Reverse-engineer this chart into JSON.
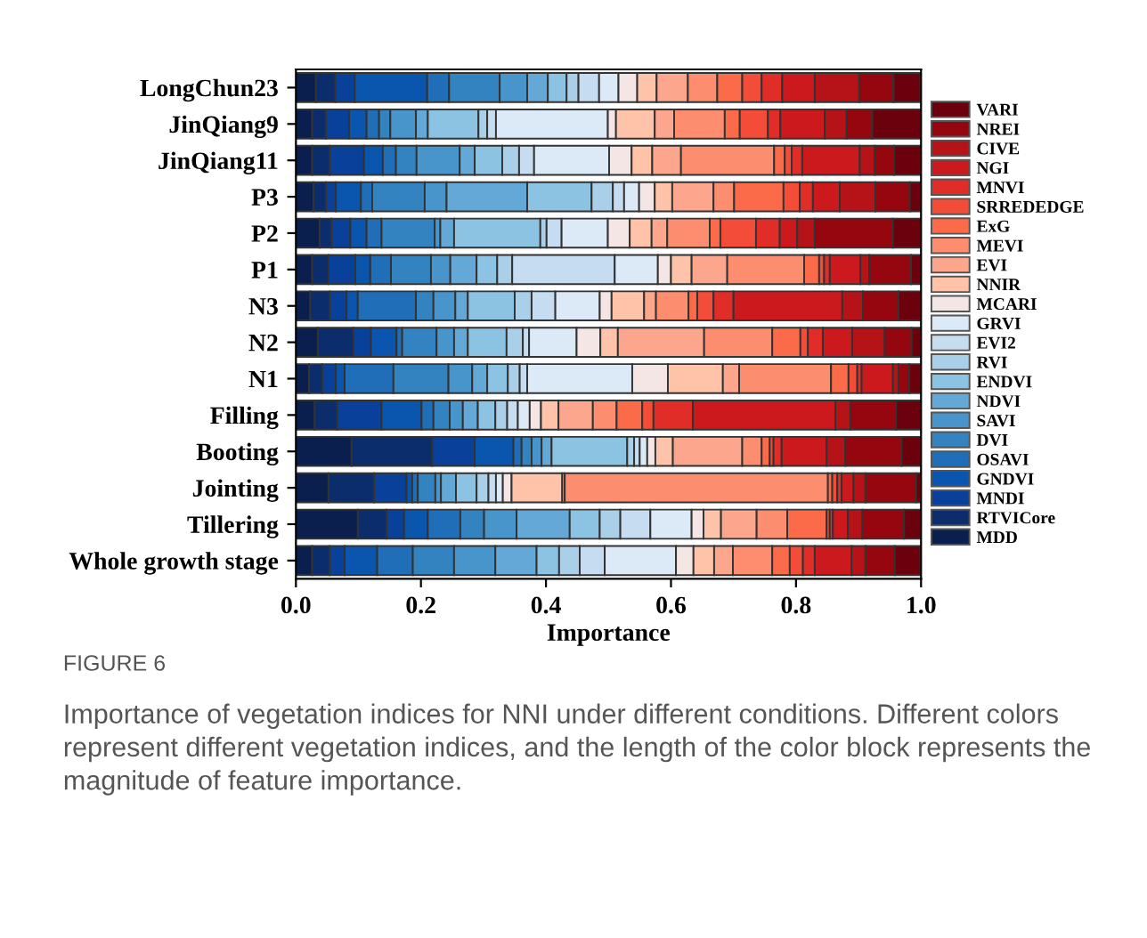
{
  "chart_data": {
    "type": "bar",
    "orientation": "horizontal",
    "stacked": true,
    "xlabel": "Importance",
    "categories": [
      "LongChun23",
      "JinQiang9",
      "JinQiang11",
      "P3",
      "P2",
      "P1",
      "N3",
      "N2",
      "N1",
      "Filling",
      "Booting",
      "Jointing",
      "Tillering",
      "Whole growth stage"
    ],
    "xlim": [
      0,
      1
    ],
    "xticks": [
      {
        "value": 0,
        "label": "0.0"
      },
      {
        "value": 0.2,
        "label": "0.2"
      },
      {
        "value": 0.4,
        "label": "0.4"
      },
      {
        "value": 0.6,
        "label": "0.6"
      },
      {
        "value": 0.8,
        "label": "0.8"
      },
      {
        "value": 1,
        "label": "1.0"
      }
    ],
    "grid": false,
    "legend": "right",
    "series": [
      {
        "name": "MDD",
        "color": "#0a1f4d",
        "values": [
          0.032,
          0.026,
          0.026,
          0.028,
          0.038,
          0.026,
          0.023,
          0.035,
          0.021,
          0.03,
          0.089,
          0.052,
          0.099,
          0.026
        ]
      },
      {
        "name": "RTVICore",
        "color": "#0b2d6b",
        "values": [
          0.031,
          0.022,
          0.028,
          0.02,
          0.019,
          0.026,
          0.031,
          0.057,
          0.021,
          0.036,
          0.129,
          0.073,
          0.046,
          0.028
        ]
      },
      {
        "name": "MNDI",
        "color": "#08409a",
        "values": [
          0.031,
          0.037,
          0.055,
          0.016,
          0.03,
          0.043,
          0.027,
          0.028,
          0.022,
          0.071,
          0.068,
          0.052,
          0.028,
          0.024
        ]
      },
      {
        "name": "GNDVI",
        "color": "#0a56ae",
        "values": [
          0.116,
          0.028,
          0.03,
          0.04,
          0.026,
          0.024,
          0.018,
          0.041,
          0.014,
          0.064,
          0.062,
          0.009,
          0.038,
          0.052
        ]
      },
      {
        "name": "OSAVI",
        "color": "#1f6eb7",
        "values": [
          0.035,
          0.02,
          0.021,
          0.018,
          0.024,
          0.033,
          0.093,
          0.009,
          0.078,
          0.019,
          0.013,
          0.009,
          0.052,
          0.057
        ]
      },
      {
        "name": "DVI",
        "color": "#3383c0",
        "values": [
          0.081,
          0.018,
          0.033,
          0.084,
          0.085,
          0.064,
          0.028,
          0.055,
          0.088,
          0.026,
          0.016,
          0.028,
          0.038,
          0.066
        ]
      },
      {
        "name": "SAVI",
        "color": "#4795ca",
        "values": [
          0.044,
          0.041,
          0.069,
          0.035,
          0.009,
          0.031,
          0.035,
          0.028,
          0.038,
          0.021,
          0.016,
          0.009,
          0.052,
          0.066
        ]
      },
      {
        "name": "NDVI",
        "color": "#63a8d6",
        "values": [
          0.033,
          0.019,
          0.024,
          0.129,
          0.022,
          0.042,
          0.02,
          0.022,
          0.024,
          0.024,
          0.016,
          0.024,
          0.085,
          0.066
        ]
      },
      {
        "name": "ENDVI",
        "color": "#8cc2e2",
        "values": [
          0.03,
          0.081,
          0.044,
          0.103,
          0.138,
          0.033,
          0.075,
          0.062,
          0.033,
          0.028,
          0.121,
          0.033,
          0.048,
          0.036
        ]
      },
      {
        "name": "RVI",
        "color": "#aacfe8",
        "values": [
          0.019,
          0.014,
          0.027,
          0.034,
          0.01,
          0.024,
          0.027,
          0.026,
          0.019,
          0.019,
          0.011,
          0.019,
          0.033,
          0.033
        ]
      },
      {
        "name": "EVI2",
        "color": "#c6dcf0",
        "values": [
          0.033,
          0.014,
          0.024,
          0.018,
          0.024,
          0.164,
          0.038,
          0.01,
          0.012,
          0.017,
          0.009,
          0.012,
          0.048,
          0.04
        ]
      },
      {
        "name": "GRVI",
        "color": "#dce9f7",
        "values": [
          0.031,
          0.179,
          0.12,
          0.024,
          0.074,
          0.069,
          0.071,
          0.076,
          0.168,
          0.019,
          0.012,
          0.011,
          0.066,
          0.114
        ]
      },
      {
        "name": "MCARI",
        "color": "#f3e6e4",
        "values": [
          0.03,
          0.013,
          0.036,
          0.025,
          0.035,
          0.021,
          0.019,
          0.038,
          0.057,
          0.018,
          0.013,
          0.014,
          0.019,
          0.028
        ]
      },
      {
        "name": "NNIR",
        "color": "#fec3a9",
        "values": [
          0.031,
          0.062,
          0.033,
          0.028,
          0.035,
          0.033,
          0.052,
          0.028,
          0.088,
          0.028,
          0.028,
          0.081,
          0.028,
          0.033
        ]
      },
      {
        "name": "EVI",
        "color": "#fca78d",
        "values": [
          0.05,
          0.031,
          0.046,
          0.066,
          0.025,
          0.057,
          0.019,
          0.138,
          0.026,
          0.055,
          0.111,
          0.004,
          0.057,
          0.03
        ]
      },
      {
        "name": "MEVI",
        "color": "#fc8e6f",
        "values": [
          0.047,
          0.081,
          0.149,
          0.033,
          0.068,
          0.123,
          0.052,
          0.109,
          0.147,
          0.038,
          0.031,
          0.421,
          0.049,
          0.063
        ]
      },
      {
        "name": "ExG",
        "color": "#fb6b4a",
        "values": [
          0.04,
          0.024,
          0.017,
          0.079,
          0.017,
          0.024,
          0.014,
          0.045,
          0.028,
          0.041,
          0.013,
          0.007,
          0.063,
          0.028
        ]
      },
      {
        "name": "SRREDEDGE",
        "color": "#f34c38",
        "values": [
          0.031,
          0.045,
          0.011,
          0.026,
          0.057,
          0.008,
          0.026,
          0.012,
          0.014,
          0.018,
          0.006,
          0.008,
          0.005,
          0.021
        ]
      },
      {
        "name": "MNVI",
        "color": "#e12d28",
        "values": [
          0.033,
          0.02,
          0.017,
          0.021,
          0.038,
          0.009,
          0.032,
          0.024,
          0.007,
          0.063,
          0.013,
          0.007,
          0.005,
          0.019
        ]
      },
      {
        "name": "NGI",
        "color": "#cc191e",
        "values": [
          0.052,
          0.071,
          0.092,
          0.043,
          0.028,
          0.049,
          0.174,
          0.047,
          0.05,
          0.228,
          0.072,
          0.019,
          0.024,
          0.059
        ]
      },
      {
        "name": "CIVE",
        "color": "#b61319",
        "values": [
          0.071,
          0.035,
          0.024,
          0.057,
          0.028,
          0.014,
          0.033,
          0.052,
          0.009,
          0.024,
          0.03,
          0.019,
          0.023,
          0.022
        ]
      },
      {
        "name": "NREI",
        "color": "#96060f",
        "values": [
          0.055,
          0.041,
          0.031,
          0.055,
          0.125,
          0.067,
          0.057,
          0.043,
          0.017,
          0.073,
          0.09,
          0.081,
          0.067,
          0.047
        ]
      },
      {
        "name": "VARI",
        "color": "#6b010d",
        "values": [
          0.043,
          0.081,
          0.043,
          0.019,
          0.046,
          0.017,
          0.036,
          0.017,
          0.019,
          0.041,
          0.031,
          0.008,
          0.028,
          0.041
        ]
      }
    ],
    "annotations": [
      "FIGURE 6",
      "Importance of vegetation indices for NNI under different conditions. Different colors represent different vegetation indices, and the length of the color block represents the magnitude of feature importance."
    ]
  }
}
